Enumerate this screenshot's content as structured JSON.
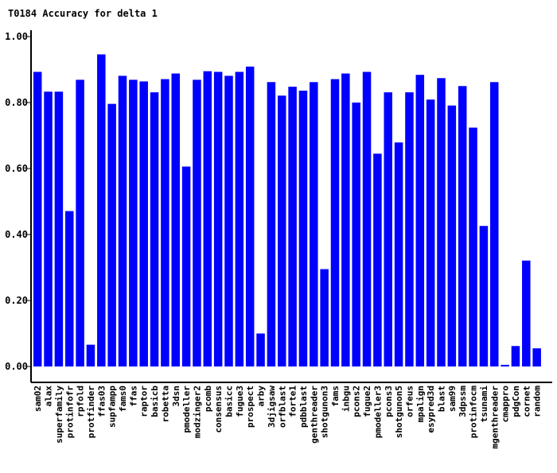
{
  "colors": {
    "bar": "#0000ff",
    "axis": "#000000",
    "background": "#ffffff"
  },
  "chart_data": {
    "type": "bar",
    "title": "T0184 Accuracy for delta 1",
    "xlabel": "",
    "ylabel": "",
    "ylim": [
      0,
      1.0
    ],
    "y_ticks": [
      "0.00",
      "0.20",
      "0.40",
      "0.60",
      "0.80",
      "1.00"
    ],
    "grid": false,
    "legend": "none",
    "categories": [
      "sam02",
      "alax",
      "superfamily",
      "protinfofr",
      "rpfold",
      "protfinder",
      "ffas03",
      "supfampp",
      "fams0",
      "ffas",
      "raptor",
      "basicb",
      "robetta",
      "3dsn",
      "pmodeller",
      "modzinger2",
      "pcomb",
      "consensus",
      "basicc",
      "fugue3",
      "prospect",
      "arby",
      "3djigsaw",
      "orfblast",
      "forte1",
      "pdbblast",
      "genthreader",
      "shotgunon3",
      "fams",
      "inbgu",
      "pcons2",
      "fugue2",
      "pmodeller3",
      "pcons3",
      "shotgunon5",
      "orfeus",
      "mpalign",
      "esypred3d",
      "blast",
      "sam99",
      "3dpssm",
      "protinfocm",
      "tsunami",
      "mgenthreader",
      "cmappro",
      "pdgCon",
      "cornet",
      "random"
    ],
    "values": [
      0.893,
      0.833,
      0.833,
      0.471,
      0.869,
      0.066,
      0.946,
      0.796,
      0.881,
      0.869,
      0.864,
      0.831,
      0.871,
      0.888,
      0.606,
      0.869,
      0.895,
      0.893,
      0.881,
      0.893,
      0.909,
      0.1,
      0.862,
      0.821,
      0.848,
      0.836,
      0.862,
      0.295,
      0.871,
      0.888,
      0.8,
      0.893,
      0.645,
      0.831,
      0.679,
      0.831,
      0.884,
      0.809,
      0.874,
      0.791,
      0.85,
      0.724,
      0.426,
      0.862,
      0.005,
      0.062,
      0.321,
      0.055
    ]
  }
}
